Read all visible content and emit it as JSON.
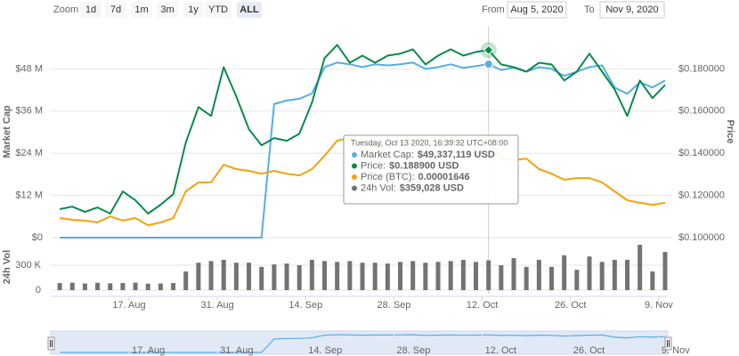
{
  "toolbar": {
    "zoom": "Zoom",
    "buttons": [
      "1d",
      "7d",
      "1m",
      "3m",
      "1y",
      "YTD",
      "ALL"
    ],
    "selected": "ALL",
    "from_label": "From",
    "from": "Aug 5, 2020",
    "to_label": "To",
    "to": "Nov 9, 2020"
  },
  "chart_data": [
    {
      "type": "line",
      "ylabel": "Market Cap",
      "y2label": "Price",
      "x": [
        "2020-08-06",
        "2020-08-08",
        "2020-08-10",
        "2020-08-12",
        "2020-08-14",
        "2020-08-16",
        "2020-08-18",
        "2020-08-20",
        "2020-08-22",
        "2020-08-24",
        "2020-08-26",
        "2020-08-28",
        "2020-08-30",
        "2020-09-01",
        "2020-09-03",
        "2020-09-05",
        "2020-09-07",
        "2020-09-09",
        "2020-09-11",
        "2020-09-13",
        "2020-09-15",
        "2020-09-17",
        "2020-09-19",
        "2020-09-21",
        "2020-09-23",
        "2020-09-25",
        "2020-09-27",
        "2020-09-29",
        "2020-10-01",
        "2020-10-03",
        "2020-10-05",
        "2020-10-07",
        "2020-10-09",
        "2020-10-11",
        "2020-10-13",
        "2020-10-15",
        "2020-10-17",
        "2020-10-19",
        "2020-10-21",
        "2020-10-23",
        "2020-10-25",
        "2020-10-27",
        "2020-10-29",
        "2020-10-31",
        "2020-11-02",
        "2020-11-04",
        "2020-11-06",
        "2020-11-08",
        "2020-11-10"
      ],
      "xlim": [
        "2020-08-05",
        "2020-11-10"
      ],
      "ylim": [
        0,
        60000000
      ],
      "yticks": [
        {
          "value": 0,
          "label": "$0"
        },
        {
          "value": 12000000,
          "label": "$12 M"
        },
        {
          "value": 24000000,
          "label": "$24 M"
        },
        {
          "value": 36000000,
          "label": "$36 M"
        },
        {
          "value": 48000000,
          "label": "$48 M"
        }
      ],
      "y2lim": [
        0.1,
        0.2
      ],
      "y2ticks": [
        {
          "value": 0.1,
          "label": "$0.100000"
        },
        {
          "value": 0.12,
          "label": "$0.120000"
        },
        {
          "value": 0.14,
          "label": "$0.140000"
        },
        {
          "value": 0.16,
          "label": "$0.160000"
        },
        {
          "value": 0.18,
          "label": "$0.180000"
        }
      ],
      "y3lim": [
        1.2e-05,
        2.17e-05
      ],
      "grid": true,
      "series": [
        {
          "color": "#55aee6",
          "axis": "y",
          "values": [
            0,
            0,
            0,
            0,
            0,
            0,
            0,
            0,
            0,
            0,
            0,
            0,
            0,
            0,
            0,
            0,
            0,
            38000000,
            39000000,
            39500000,
            41000000,
            48500000,
            49800000,
            49300000,
            48500000,
            49300000,
            49000000,
            49300000,
            49800000,
            48000000,
            48500000,
            49300000,
            48300000,
            48800000,
            49337119,
            47700000,
            48300000,
            47200000,
            48500000,
            48000000,
            46000000,
            47200000,
            48500000,
            49000000,
            42700000,
            40900000,
            44200000,
            42700000,
            44700000
          ]
        },
        {
          "color": "#0b8a4a",
          "axis": "y2",
          "values": [
            0.1135,
            0.1147,
            0.1122,
            0.1143,
            0.1114,
            0.1219,
            0.1177,
            0.1114,
            0.1156,
            0.1206,
            0.1451,
            0.1619,
            0.1577,
            0.1808,
            0.1669,
            0.1514,
            0.1438,
            0.1472,
            0.1459,
            0.1493,
            0.164,
            0.1851,
            0.1914,
            0.1829,
            0.1863,
            0.1829,
            0.1863,
            0.1872,
            0.1893,
            0.1821,
            0.1863,
            0.1893,
            0.1863,
            0.188,
            0.1889,
            0.1821,
            0.1808,
            0.1787,
            0.1829,
            0.1821,
            0.1745,
            0.1787,
            0.1872,
            0.1787,
            0.1703,
            0.1577,
            0.1745,
            0.1661,
            0.1724
          ]
        },
        {
          "color": "#f4a20a",
          "axis": "y3",
          "values": [
            1.29e-05,
            1.282e-05,
            1.278e-05,
            1.27e-05,
            1.298e-05,
            1.278e-05,
            1.29e-05,
            1.257e-05,
            1.27e-05,
            1.29e-05,
            1.413e-05,
            1.454e-05,
            1.454e-05,
            1.535e-05,
            1.515e-05,
            1.507e-05,
            1.494e-05,
            1.507e-05,
            1.494e-05,
            1.486e-05,
            1.515e-05,
            1.576e-05,
            1.646e-05,
            1.658e-05,
            1.638e-05,
            1.617e-05,
            1.629e-05,
            1.638e-05,
            1.658e-05,
            1.646e-05,
            1.638e-05,
            1.646e-05,
            1.638e-05,
            1.629e-05,
            1.646e-05,
            1.564e-05,
            1.556e-05,
            1.564e-05,
            1.515e-05,
            1.494e-05,
            1.466e-05,
            1.474e-05,
            1.474e-05,
            1.454e-05,
            1.413e-05,
            1.372e-05,
            1.36e-05,
            1.351e-05,
            1.36e-05
          ]
        }
      ]
    },
    {
      "type": "bar",
      "ylabel": "24h Vol",
      "x": [
        "2020-08-06",
        "2020-08-08",
        "2020-08-10",
        "2020-08-12",
        "2020-08-14",
        "2020-08-16",
        "2020-08-18",
        "2020-08-20",
        "2020-08-22",
        "2020-08-24",
        "2020-08-26",
        "2020-08-28",
        "2020-08-30",
        "2020-09-01",
        "2020-09-03",
        "2020-09-05",
        "2020-09-07",
        "2020-09-09",
        "2020-09-11",
        "2020-09-13",
        "2020-09-15",
        "2020-09-17",
        "2020-09-19",
        "2020-09-21",
        "2020-09-23",
        "2020-09-25",
        "2020-09-27",
        "2020-09-29",
        "2020-10-01",
        "2020-10-03",
        "2020-10-05",
        "2020-10-07",
        "2020-10-09",
        "2020-10-11",
        "2020-10-13",
        "2020-10-15",
        "2020-10-17",
        "2020-10-19",
        "2020-10-21",
        "2020-10-23",
        "2020-10-25",
        "2020-10-27",
        "2020-10-29",
        "2020-10-31",
        "2020-11-02",
        "2020-11-04",
        "2020-11-06",
        "2020-11-08",
        "2020-11-10"
      ],
      "xlim": [
        "2020-08-05",
        "2020-11-10"
      ],
      "xticks": [
        {
          "value": "2020-08-17",
          "label": "17. Aug"
        },
        {
          "value": "2020-08-31",
          "label": "31. Aug"
        },
        {
          "value": "2020-09-14",
          "label": "14. Sep"
        },
        {
          "value": "2020-09-28",
          "label": "28. Sep"
        },
        {
          "value": "2020-10-12",
          "label": "12. Oct"
        },
        {
          "value": "2020-10-26",
          "label": "26. Oct"
        },
        {
          "value": "2020-11-09",
          "label": "9. Nov"
        }
      ],
      "ylim": [
        0,
        600000
      ],
      "yticks": [
        0,
        {
          "value": 300000,
          "label": "300 K"
        }
      ],
      "color": "#737373",
      "values": [
        85000,
        90000,
        80000,
        88000,
        82000,
        86000,
        90000,
        78000,
        80000,
        85000,
        225000,
        330000,
        350000,
        365000,
        330000,
        330000,
        280000,
        310000,
        320000,
        300000,
        365000,
        350000,
        340000,
        350000,
        330000,
        330000,
        320000,
        340000,
        350000,
        330000,
        340000,
        350000,
        365000,
        340000,
        359028,
        300000,
        385000,
        280000,
        365000,
        280000,
        420000,
        245000,
        405000,
        340000,
        365000,
        365000,
        545000,
        225000,
        460000
      ]
    }
  ],
  "tooltip": {
    "x": "2020-10-13",
    "title": "Tuesday, Oct 13 2020, 16:39:32 UTC+08:00",
    "rows": [
      {
        "label": "Market Cap:",
        "value": "$49,337,119 USD",
        "color": "#55aee6"
      },
      {
        "label": "Price:",
        "value": "$0.188900 USD",
        "color": "#0b8a4a"
      },
      {
        "label": "Price (BTC):",
        "value": "0.00001646",
        "color": "#f4a20a"
      },
      {
        "label": "24h Vol:",
        "value": "$359,028 USD",
        "color": "#737373"
      }
    ]
  }
}
